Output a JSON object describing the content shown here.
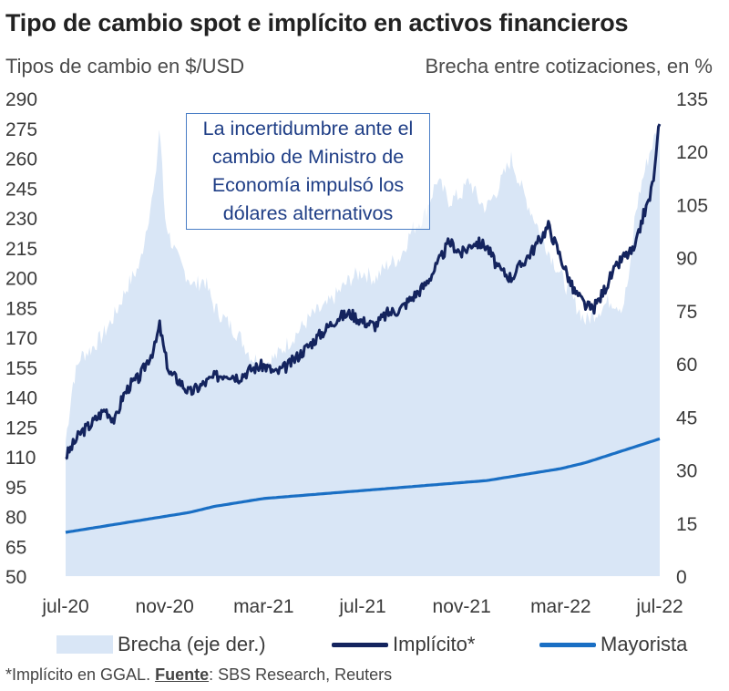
{
  "title": "Tipo de cambio spot e implícito en activos financieros",
  "left_axis_title": "Tipos de cambio en $/USD",
  "right_axis_title": "Brecha entre cotizaciones, en %",
  "annotation": "La incertidumbre ante el cambio de Ministro de Economía impulsó los dólares alternativos",
  "footnote_prefix": "*Implícito en GGAL. ",
  "footnote_source_label": "Fuente",
  "footnote_source": ": SBS Research, Reuters",
  "colors": {
    "brecha": "#d9e6f6",
    "implicito": "#14245e",
    "mayorista": "#1a6fc4",
    "annotation_border": "#4a7ec6",
    "annotation_text": "#1f3e86"
  },
  "chart_data": {
    "type": "line",
    "title": "Tipo de cambio spot e implícito en activos financieros",
    "ylabel": "Tipos de cambio en $/USD",
    "y2label": "Brecha entre cotizaciones, en %",
    "ylim": [
      50,
      290
    ],
    "y2lim": [
      0,
      135
    ],
    "yticks": [
      "290",
      "275",
      "260",
      "245",
      "230",
      "215",
      "200",
      "185",
      "170",
      "155",
      "140",
      "125",
      "110",
      "95",
      "80",
      "65",
      "50"
    ],
    "y2ticks": [
      "135",
      "120",
      "105",
      "90",
      "75",
      "60",
      "45",
      "30",
      "15",
      "0"
    ],
    "x_labels": [
      "jul-20",
      "nov-20",
      "mar-21",
      "jul-21",
      "nov-21",
      "mar-22",
      "jul-22"
    ],
    "x_range_months": [
      0,
      24
    ],
    "series": [
      {
        "name": "Brecha (eje der.)",
        "axis": "right",
        "style": "area",
        "x": [
          0,
          0.3,
          0.6,
          1.0,
          1.5,
          2.0,
          2.5,
          3.0,
          3.3,
          3.6,
          3.8,
          4.0,
          4.2,
          4.5,
          4.8,
          5.2,
          5.6,
          6.0,
          6.5,
          7.0,
          7.5,
          8.0,
          8.5,
          9.0,
          9.5,
          10.0,
          10.5,
          11.0,
          11.5,
          12.0,
          12.5,
          13.0,
          13.5,
          14.0,
          14.5,
          15.0,
          15.5,
          16.0,
          16.3,
          16.7,
          17.0,
          17.5,
          18.0,
          18.5,
          19.0,
          19.5,
          20.0,
          20.5,
          21.0,
          21.5,
          22.0,
          22.5,
          22.8,
          23.0,
          23.3,
          23.6,
          24.0
        ],
        "values": [
          38,
          55,
          62,
          64,
          68,
          74,
          82,
          88,
          100,
          110,
          128,
          102,
          96,
          90,
          86,
          82,
          84,
          76,
          72,
          68,
          62,
          60,
          62,
          66,
          70,
          74,
          76,
          80,
          84,
          86,
          84,
          88,
          90,
          98,
          102,
          112,
          106,
          108,
          112,
          106,
          104,
          110,
          118,
          108,
          100,
          92,
          85,
          78,
          72,
          75,
          78,
          76,
          86,
          102,
          112,
          120,
          128
        ]
      },
      {
        "name": "Implícito*",
        "axis": "left",
        "style": "line",
        "x": [
          0,
          0.3,
          0.6,
          1.0,
          1.3,
          1.6,
          2.0,
          2.3,
          2.6,
          3.0,
          3.3,
          3.6,
          3.8,
          4.0,
          4.2,
          4.6,
          5.0,
          5.5,
          6.0,
          6.5,
          7.0,
          7.5,
          8.0,
          8.5,
          9.0,
          9.5,
          10.0,
          10.5,
          11.0,
          11.5,
          12.0,
          12.5,
          13.0,
          13.5,
          14.0,
          14.5,
          15.0,
          15.5,
          16.0,
          16.5,
          17.0,
          17.5,
          18.0,
          18.5,
          19.0,
          19.5,
          20.0,
          20.5,
          21.0,
          21.3,
          21.6,
          22.0,
          22.5,
          23.0,
          23.3,
          23.6,
          23.8,
          24.0
        ],
        "values": [
          110,
          116,
          122,
          126,
          130,
          134,
          128,
          140,
          146,
          150,
          158,
          165,
          176,
          162,
          152,
          148,
          142,
          146,
          150,
          152,
          150,
          154,
          156,
          152,
          156,
          162,
          168,
          174,
          180,
          182,
          178,
          176,
          182,
          184,
          190,
          196,
          206,
          218,
          212,
          218,
          216,
          204,
          200,
          208,
          216,
          226,
          210,
          194,
          186,
          184,
          190,
          200,
          210,
          214,
          230,
          240,
          254,
          280
        ]
      },
      {
        "name": "Mayorista",
        "axis": "left",
        "style": "line",
        "x": [
          0,
          1,
          2,
          3,
          4,
          5,
          6,
          7,
          8,
          9,
          10,
          11,
          12,
          13,
          14,
          15,
          16,
          17,
          18,
          19,
          20,
          21,
          22,
          23,
          24
        ],
        "values": [
          72,
          74,
          76,
          78,
          80,
          82,
          85,
          87,
          89,
          90,
          91,
          92,
          93,
          94,
          95,
          96,
          97,
          98,
          100,
          102,
          104,
          107,
          111,
          115,
          119
        ]
      }
    ]
  },
  "legend": [
    {
      "label": "Brecha (eje der.)",
      "swatch": "area"
    },
    {
      "label": "Implícito*",
      "swatch": "line-dark"
    },
    {
      "label": "Mayorista",
      "swatch": "line-blue"
    }
  ]
}
